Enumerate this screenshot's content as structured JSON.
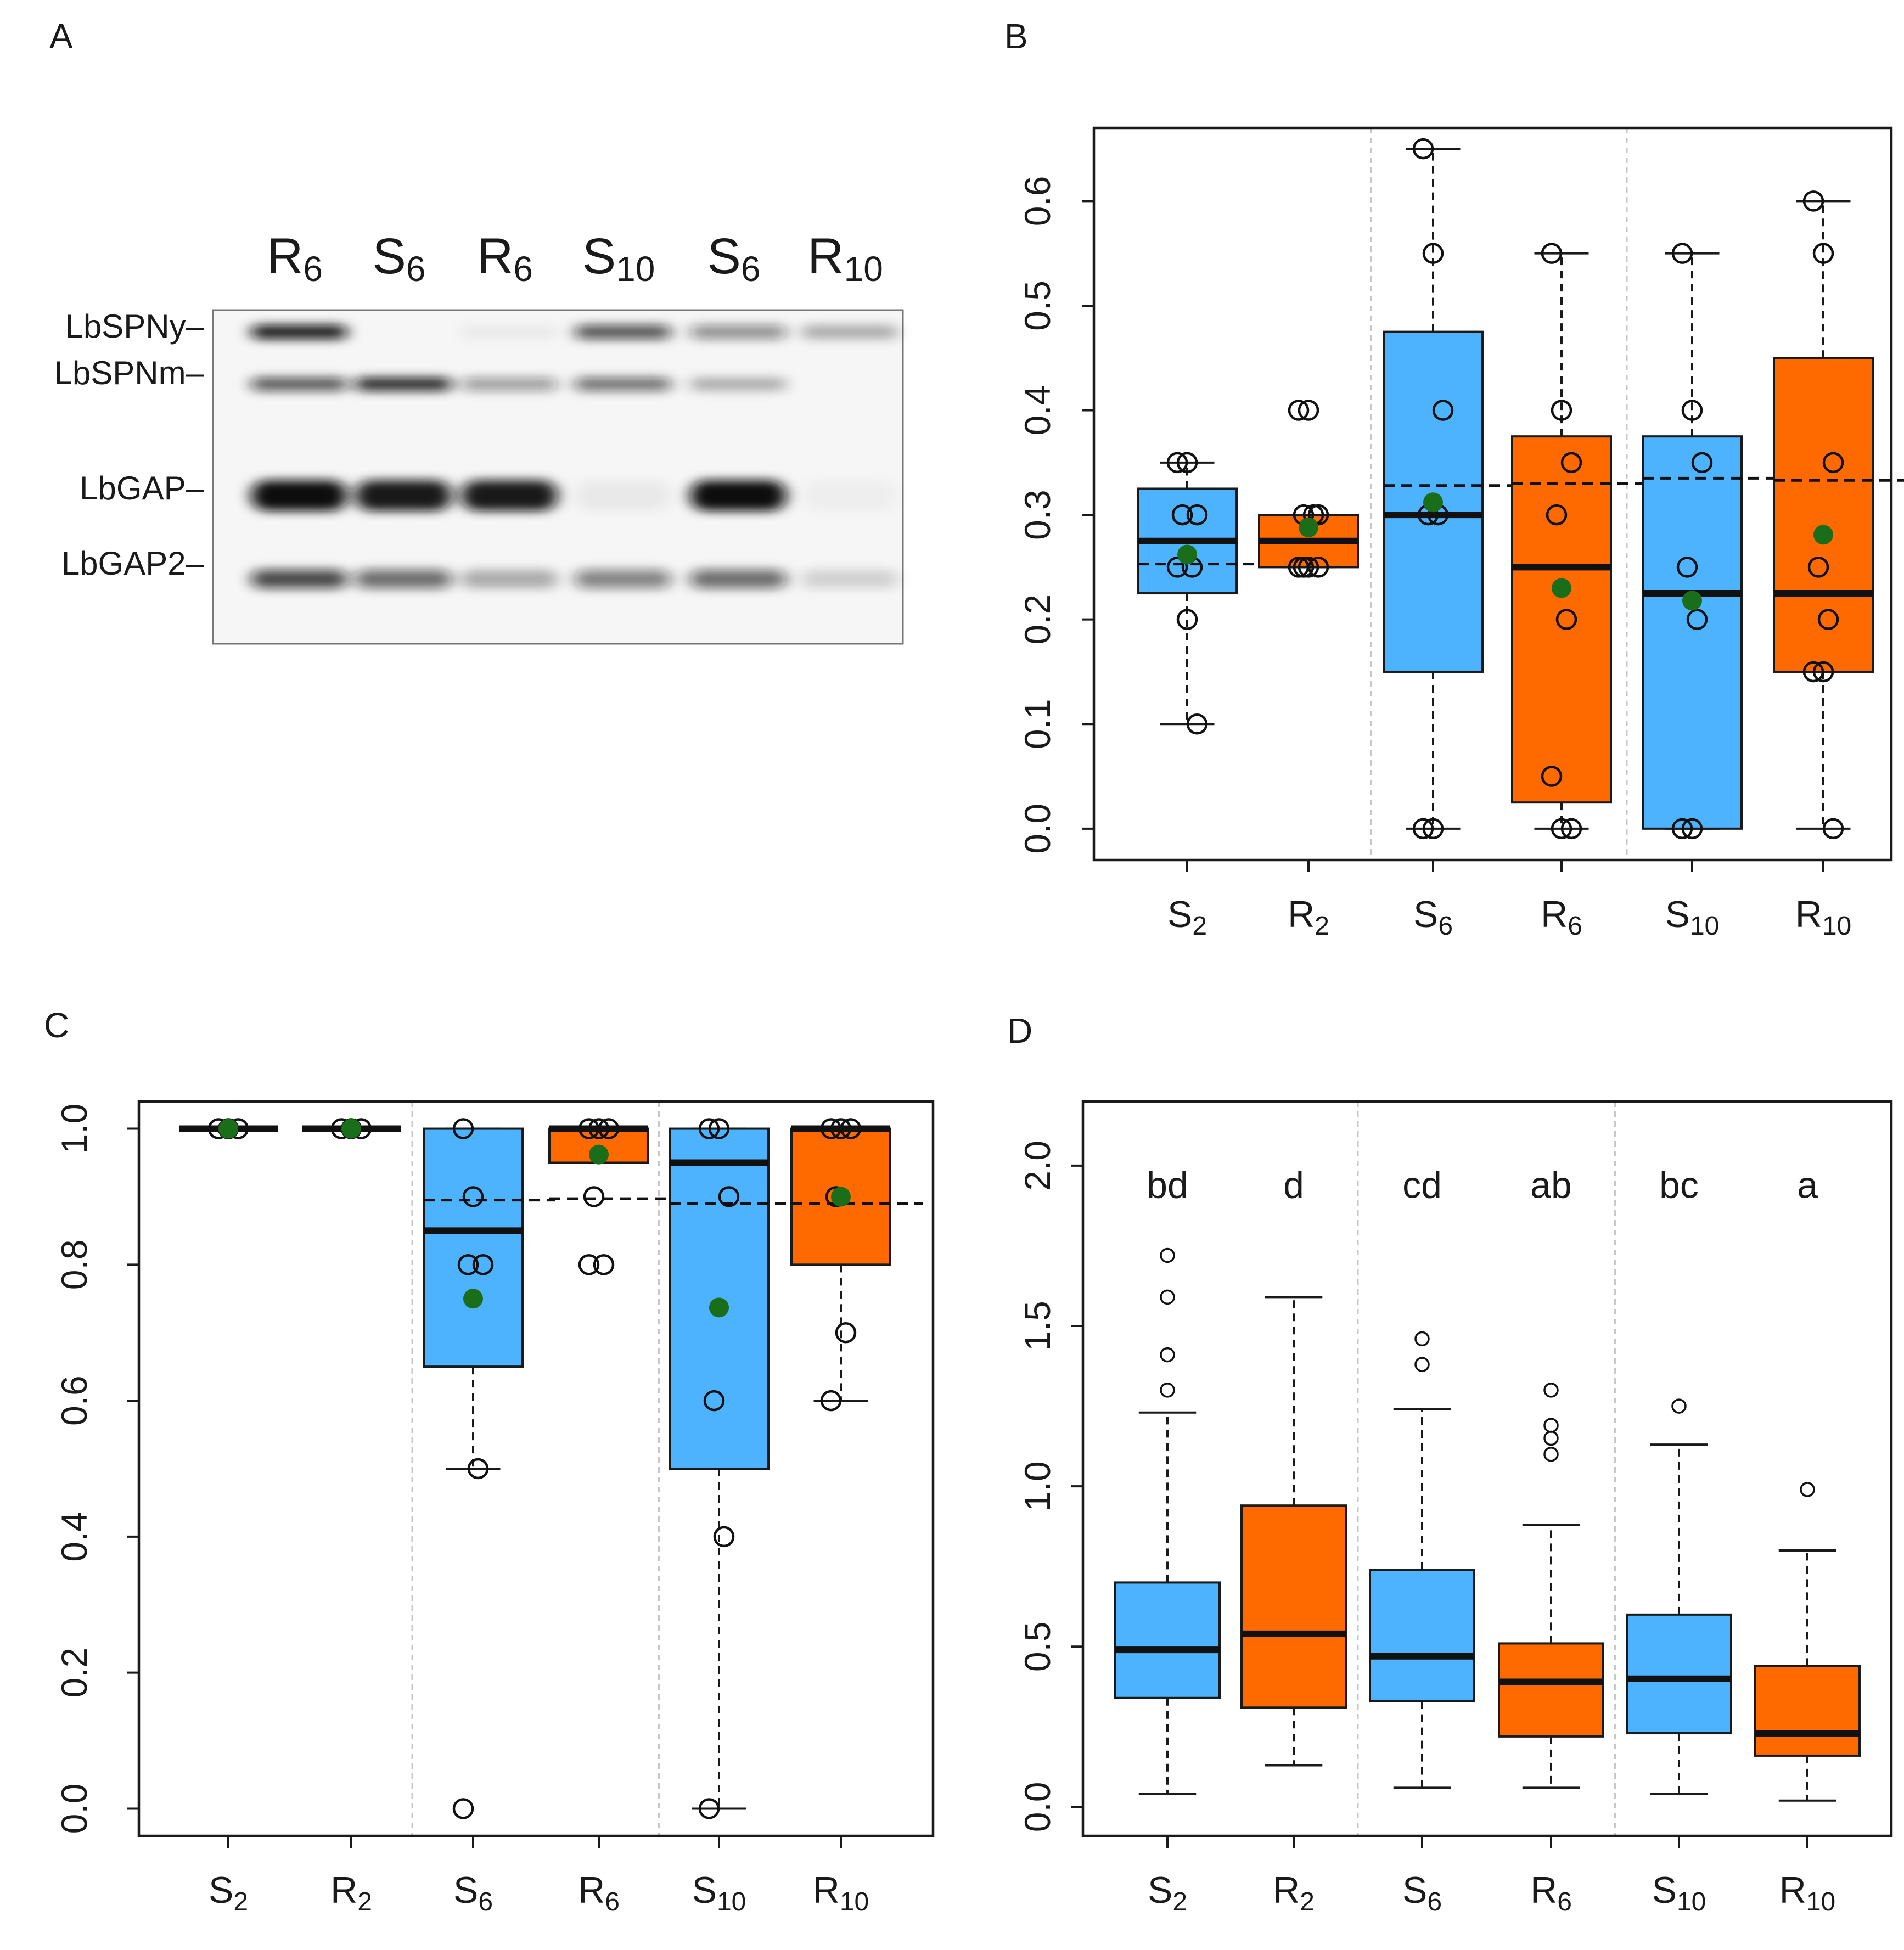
{
  "figure": {
    "panels": [
      "A",
      "B",
      "C",
      "D"
    ],
    "colors": {
      "S": "#4db3ff",
      "R": "#ff6a00",
      "mean": "#1a6e1a",
      "frame": "#1a1a1a"
    }
  },
  "blot": {
    "panel": "A",
    "lanes": [
      {
        "base": "R",
        "sub": "6"
      },
      {
        "base": "S",
        "sub": "6"
      },
      {
        "base": "R",
        "sub": "6"
      },
      {
        "base": "S",
        "sub": "10"
      },
      {
        "base": "S",
        "sub": "6"
      },
      {
        "base": "R",
        "sub": "10"
      }
    ],
    "bands": [
      "LbSPNy–",
      "LbSPNm–",
      "LbGAP–",
      "LbGAP2–"
    ],
    "intensities": {
      "LbSPNy": [
        0.95,
        0.0,
        0.05,
        0.7,
        0.45,
        0.3
      ],
      "LbSPNm": [
        0.7,
        0.9,
        0.4,
        0.6,
        0.3,
        0.0
      ],
      "LbGAP": [
        1.0,
        0.95,
        0.95,
        0.05,
        1.0,
        0.03
      ],
      "LbGAP2": [
        0.75,
        0.6,
        0.3,
        0.5,
        0.6,
        0.15
      ]
    }
  },
  "chart_data": [
    {
      "panel": "B",
      "type": "box",
      "title": "",
      "xlabel": "",
      "ylabel": "",
      "ylim": [
        -0.03,
        0.67
      ],
      "yticks": [
        0.0,
        0.1,
        0.2,
        0.3,
        0.4,
        0.5,
        0.6
      ],
      "ytick_labels": [
        "0.0",
        "0.1",
        "0.2",
        "0.3",
        "0.4",
        "0.5",
        "0.6"
      ],
      "categories": [
        {
          "base": "S",
          "sub": "2"
        },
        {
          "base": "R",
          "sub": "2"
        },
        {
          "base": "S",
          "sub": "6"
        },
        {
          "base": "R",
          "sub": "6"
        },
        {
          "base": "S",
          "sub": "10"
        },
        {
          "base": "R",
          "sub": "10"
        }
      ],
      "group_dividers_after": [
        2,
        4
      ],
      "series": [
        {
          "name": "S2",
          "color": "S",
          "whisker_low": 0.1,
          "q1": 0.225,
          "median": 0.275,
          "q3": 0.325,
          "whisker_high": 0.35,
          "mean": 0.262,
          "dashed_line": 0.253,
          "points": [
            0.35,
            0.35,
            0.3,
            0.3,
            0.25,
            0.25,
            0.2,
            0.1
          ]
        },
        {
          "name": "R2",
          "color": "R",
          "whisker_low": 0.25,
          "q1": 0.25,
          "median": 0.275,
          "q3": 0.3,
          "whisker_high": 0.3,
          "mean": 0.288,
          "dashed_line": null,
          "points": [
            0.4,
            0.4,
            0.3,
            0.3,
            0.3,
            0.25,
            0.25,
            0.25,
            0.25
          ]
        },
        {
          "name": "S6",
          "color": "S",
          "whisker_low": 0.0,
          "q1": 0.15,
          "median": 0.3,
          "q3": 0.475,
          "whisker_high": 0.65,
          "mean": 0.312,
          "dashed_line": 0.328,
          "points": [
            0.65,
            0.55,
            0.4,
            0.3,
            0.3,
            0.0,
            0.0
          ]
        },
        {
          "name": "R6",
          "color": "R",
          "whisker_low": 0.0,
          "q1": 0.025,
          "median": 0.25,
          "q3": 0.375,
          "whisker_high": 0.55,
          "mean": 0.23,
          "dashed_line": 0.33,
          "points": [
            0.55,
            0.4,
            0.35,
            0.3,
            0.2,
            0.05,
            0.0,
            0.0
          ]
        },
        {
          "name": "S10",
          "color": "S",
          "whisker_low": 0.0,
          "q1": 0.0,
          "median": 0.225,
          "q3": 0.375,
          "whisker_high": 0.55,
          "mean": 0.218,
          "dashed_line": 0.335,
          "points": [
            0.55,
            0.4,
            0.35,
            0.25,
            0.2,
            0.0,
            0.0
          ]
        },
        {
          "name": "R10",
          "color": "R",
          "whisker_low": 0.0,
          "q1": 0.15,
          "median": 0.225,
          "q3": 0.45,
          "whisker_high": 0.6,
          "mean": 0.281,
          "dashed_line": 0.333,
          "points": [
            0.6,
            0.55,
            0.35,
            0.25,
            0.2,
            0.15,
            0.15,
            0.0
          ]
        }
      ]
    },
    {
      "panel": "C",
      "type": "box",
      "title": "",
      "xlabel": "",
      "ylabel": "",
      "ylim": [
        -0.04,
        1.04
      ],
      "yticks": [
        0.0,
        0.2,
        0.4,
        0.6,
        0.8,
        1.0
      ],
      "ytick_labels": [
        "0.0",
        "0.2",
        "0.4",
        "0.6",
        "0.8",
        "1.0"
      ],
      "categories": [
        {
          "base": "S",
          "sub": "2"
        },
        {
          "base": "R",
          "sub": "2"
        },
        {
          "base": "S",
          "sub": "6"
        },
        {
          "base": "R",
          "sub": "6"
        },
        {
          "base": "S",
          "sub": "10"
        },
        {
          "base": "R",
          "sub": "10"
        }
      ],
      "group_dividers_after": [
        2,
        4
      ],
      "series": [
        {
          "name": "S2",
          "color": "S",
          "whisker_low": 1.0,
          "q1": 1.0,
          "median": 1.0,
          "q3": 1.0,
          "whisker_high": 1.0,
          "mean": 1.0,
          "dashed_line": null,
          "points": [
            1.0,
            1.0,
            1.0
          ]
        },
        {
          "name": "R2",
          "color": "R",
          "whisker_low": 1.0,
          "q1": 1.0,
          "median": 1.0,
          "q3": 1.0,
          "whisker_high": 1.0,
          "mean": 1.0,
          "dashed_line": null,
          "points": [
            1.0,
            1.0,
            1.0
          ]
        },
        {
          "name": "S6",
          "color": "S",
          "whisker_low": 0.5,
          "q1": 0.65,
          "median": 0.85,
          "q3": 1.0,
          "whisker_high": 1.0,
          "mean": 0.75,
          "dashed_line": 0.895,
          "points": [
            1.0,
            0.9,
            0.8,
            0.8,
            0.5,
            0.0
          ]
        },
        {
          "name": "R6",
          "color": "R",
          "whisker_low": 0.95,
          "q1": 0.95,
          "median": 1.0,
          "q3": 1.0,
          "whisker_high": 1.0,
          "mean": 0.962,
          "dashed_line": 0.897,
          "points": [
            1.0,
            1.0,
            1.0,
            0.9,
            0.8,
            0.8
          ]
        },
        {
          "name": "S10",
          "color": "S",
          "whisker_low": 0.0,
          "q1": 0.5,
          "median": 0.95,
          "q3": 1.0,
          "whisker_high": 1.0,
          "mean": 0.737,
          "dashed_line": 0.89,
          "points": [
            1.0,
            1.0,
            0.9,
            0.6,
            0.4,
            0.0
          ]
        },
        {
          "name": "R10",
          "color": "R",
          "whisker_low": 0.6,
          "q1": 0.8,
          "median": 1.0,
          "q3": 1.0,
          "whisker_high": 1.0,
          "mean": 0.9,
          "dashed_line": 0.89,
          "points": [
            1.0,
            1.0,
            1.0,
            0.9,
            0.7,
            0.6
          ]
        }
      ]
    },
    {
      "panel": "D",
      "type": "box",
      "title": "",
      "xlabel": "",
      "ylabel": "",
      "ylim": [
        -0.09,
        2.2
      ],
      "yticks": [
        0.0,
        0.5,
        1.0,
        1.5,
        2.0
      ],
      "ytick_labels": [
        "0.0",
        "0.5",
        "1.0",
        "1.5",
        "2.0"
      ],
      "categories": [
        {
          "base": "S",
          "sub": "2"
        },
        {
          "base": "R",
          "sub": "2"
        },
        {
          "base": "S",
          "sub": "6"
        },
        {
          "base": "R",
          "sub": "6"
        },
        {
          "base": "S",
          "sub": "10"
        },
        {
          "base": "R",
          "sub": "10"
        }
      ],
      "group_dividers_after": [
        2,
        4
      ],
      "significance_labels": [
        "bd",
        "d",
        "cd",
        "ab",
        "bc",
        "a"
      ],
      "significance_y": 1.9,
      "series": [
        {
          "name": "S2",
          "color": "S",
          "whisker_low": 0.04,
          "q1": 0.34,
          "median": 0.49,
          "q3": 0.7,
          "whisker_high": 1.23,
          "mean": null,
          "dashed_line": null,
          "outliers": [
            1.72,
            1.59,
            1.41,
            1.3
          ]
        },
        {
          "name": "R2",
          "color": "R",
          "whisker_low": 0.13,
          "q1": 0.31,
          "median": 0.54,
          "q3": 0.94,
          "whisker_high": 1.59,
          "mean": null,
          "dashed_line": null,
          "outliers": []
        },
        {
          "name": "S6",
          "color": "S",
          "whisker_low": 0.06,
          "q1": 0.33,
          "median": 0.47,
          "q3": 0.74,
          "whisker_high": 1.24,
          "mean": null,
          "dashed_line": null,
          "outliers": [
            1.46,
            1.38
          ]
        },
        {
          "name": "R6",
          "color": "R",
          "whisker_low": 0.06,
          "q1": 0.22,
          "median": 0.39,
          "q3": 0.51,
          "whisker_high": 0.88,
          "mean": null,
          "dashed_line": null,
          "outliers": [
            1.3,
            1.19,
            1.15,
            1.1
          ]
        },
        {
          "name": "S10",
          "color": "S",
          "whisker_low": 0.04,
          "q1": 0.23,
          "median": 0.4,
          "q3": 0.6,
          "whisker_high": 1.13,
          "mean": null,
          "dashed_line": null,
          "outliers": [
            1.25
          ]
        },
        {
          "name": "R10",
          "color": "R",
          "whisker_low": 0.02,
          "q1": 0.16,
          "median": 0.23,
          "q3": 0.44,
          "whisker_high": 0.8,
          "mean": null,
          "dashed_line": null,
          "outliers": [
            0.99
          ]
        }
      ]
    }
  ]
}
